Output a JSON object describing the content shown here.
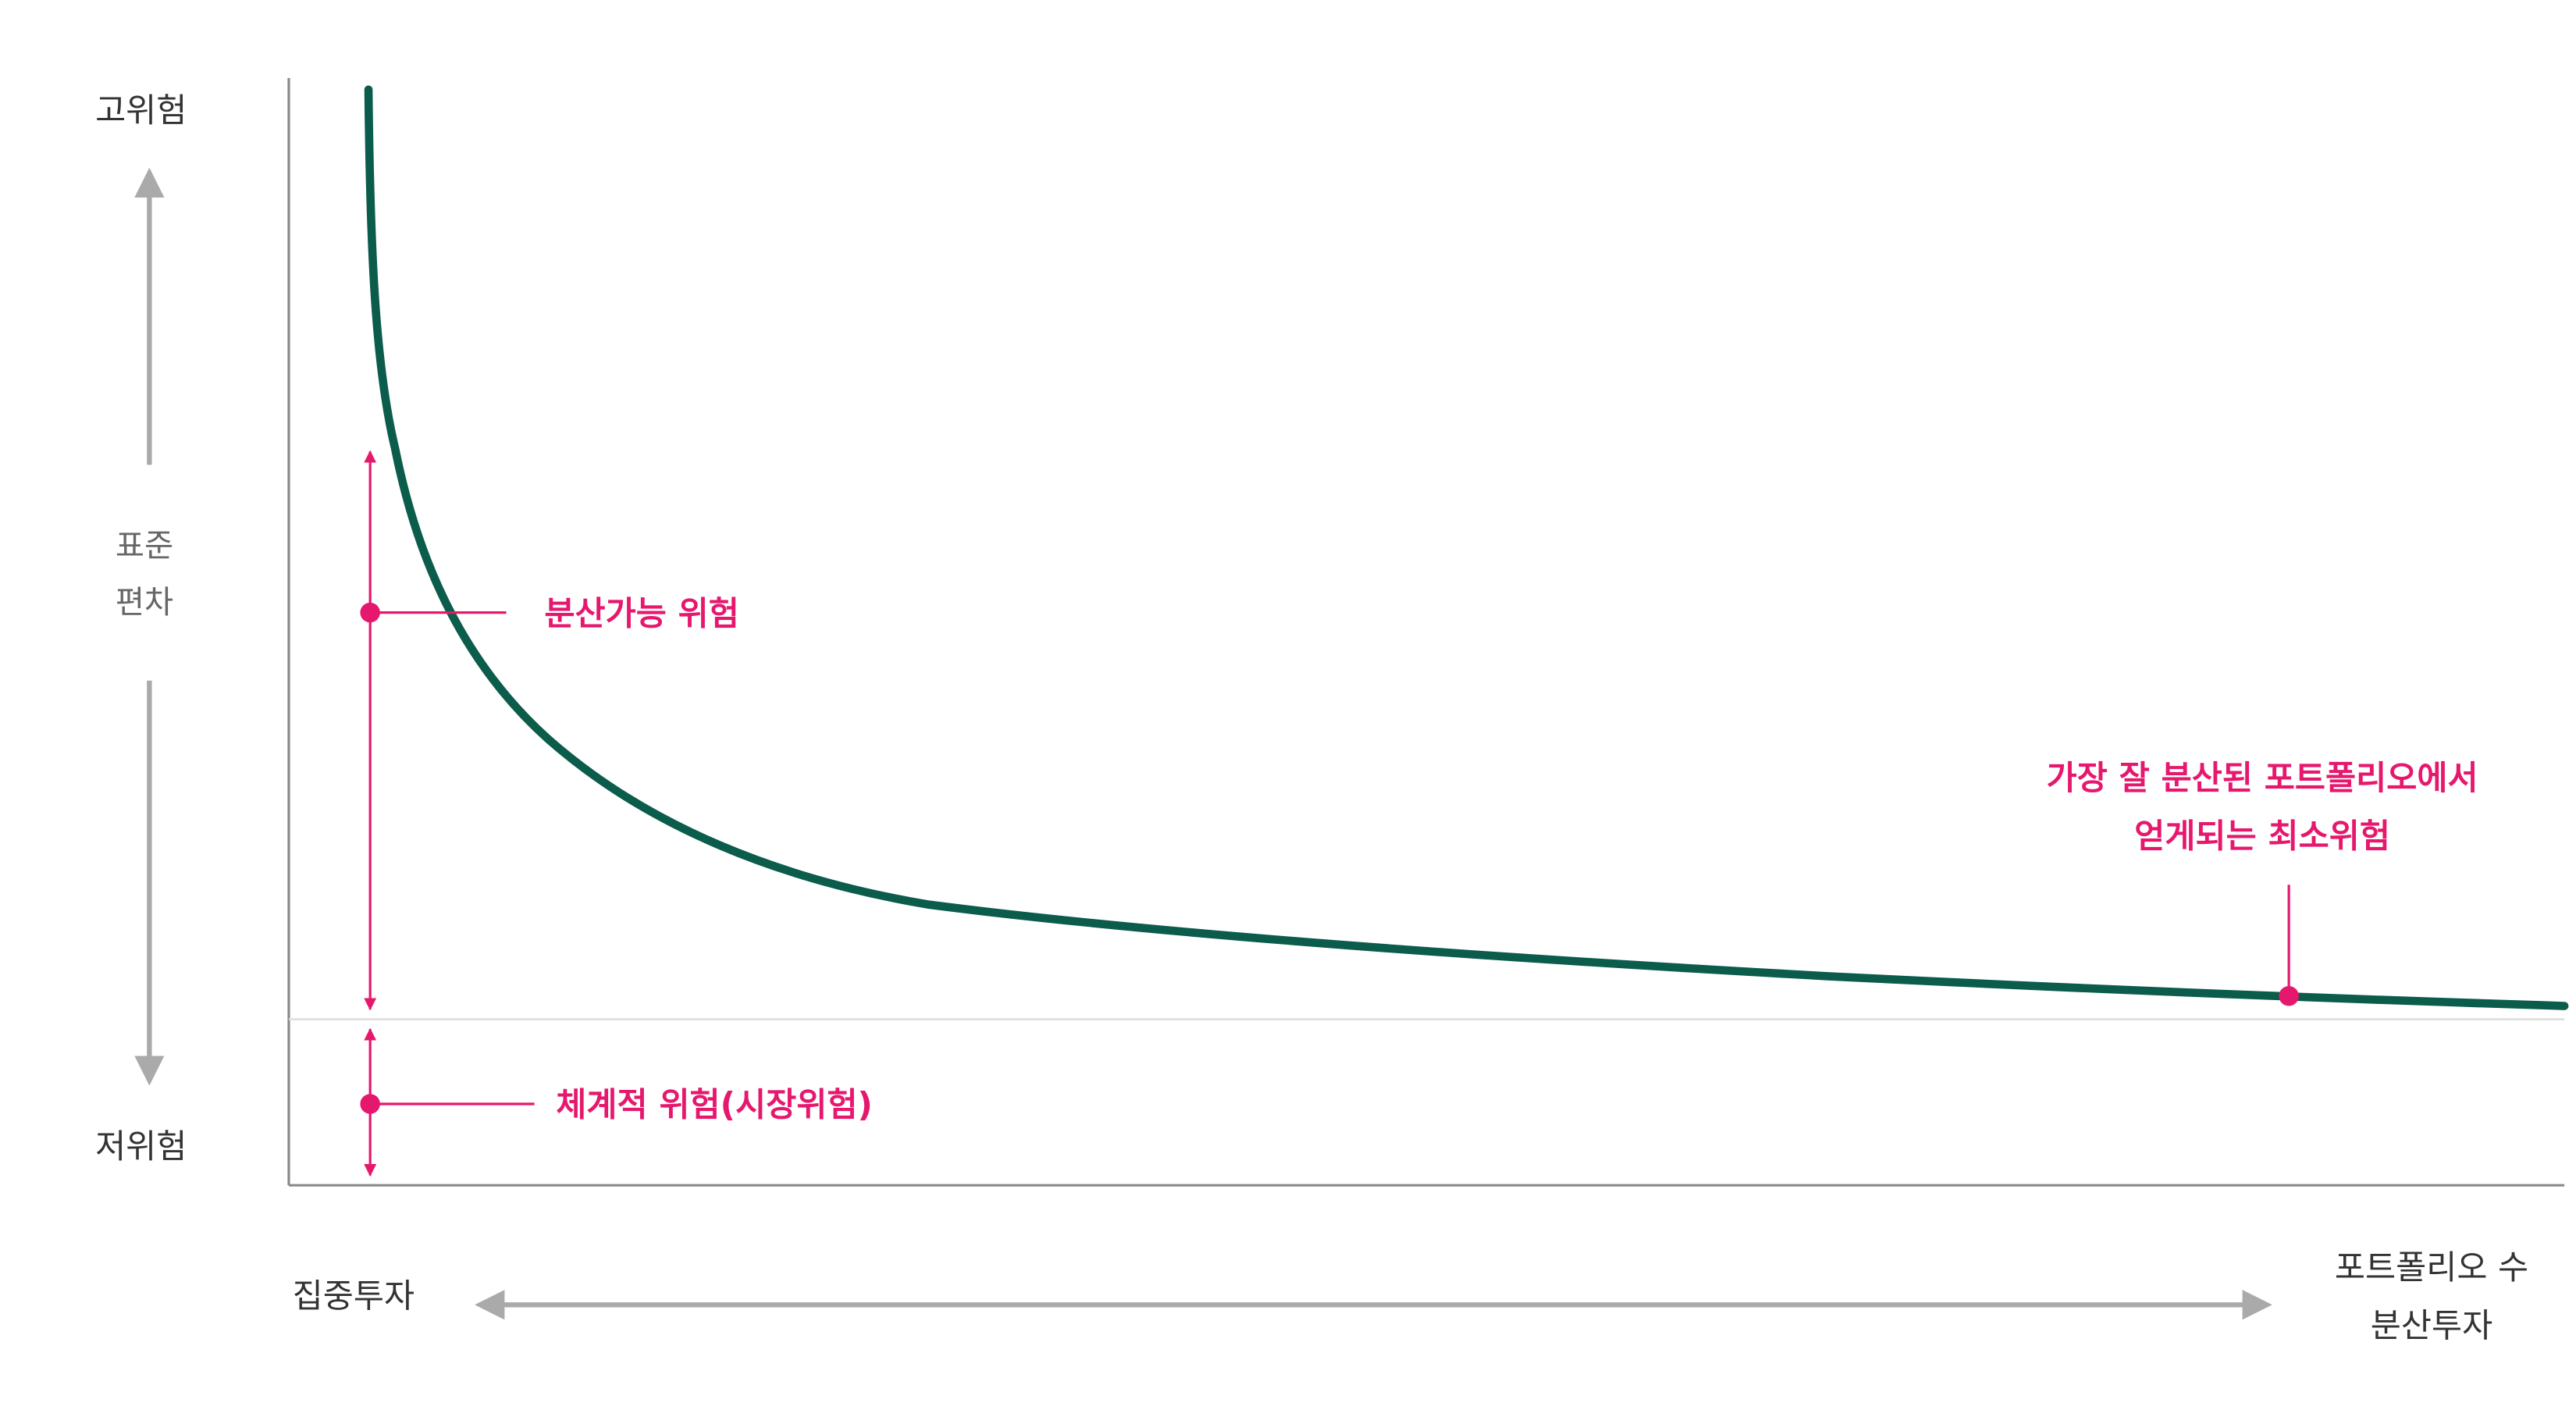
{
  "y_axis": {
    "top_label": "고위험",
    "middle_label": [
      "표준",
      "편차"
    ],
    "bottom_label": "저위험"
  },
  "x_axis": {
    "left_label": "집중투자",
    "right_label": [
      "포트폴리오 수",
      "분산투자"
    ]
  },
  "annotations": {
    "diversifiable_risk": "분산가능 위험",
    "systematic_risk": "체계적 위험(시장위험)",
    "minimum_risk": [
      "가장 잘 분산된 포트폴리오에서",
      "얻게되는 최소위험"
    ]
  }
}
